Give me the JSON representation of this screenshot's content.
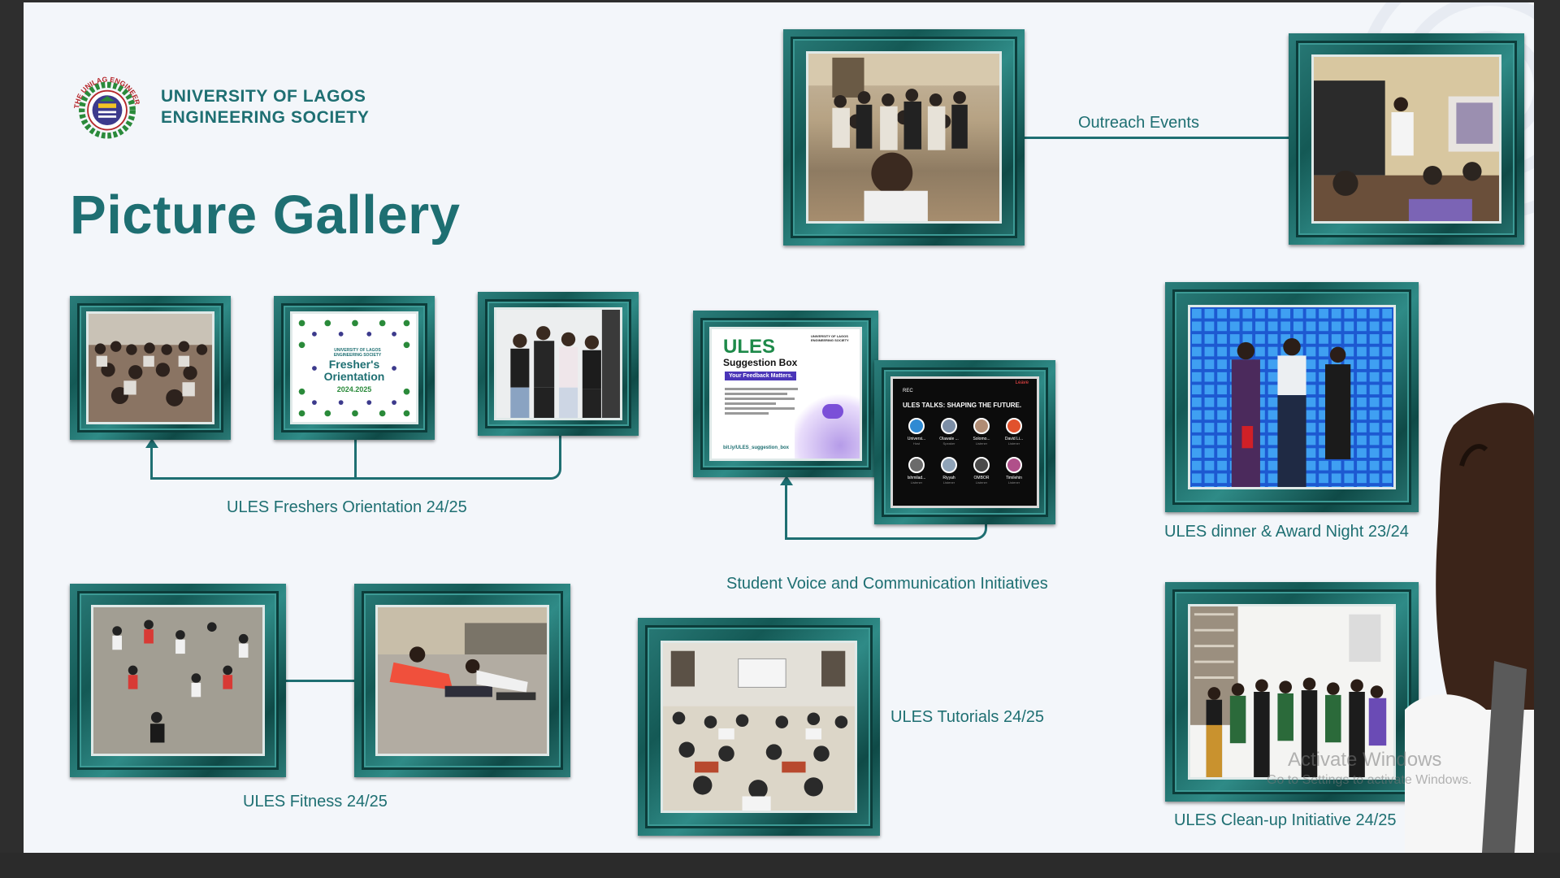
{
  "org": {
    "line1": "UNIVERSITY OF LAGOS",
    "line2": "ENGINEERING SOCIETY",
    "logo_ring_text": "THE UNILAG ENGINEER"
  },
  "title": "Picture Gallery",
  "captions": {
    "outreach": "Outreach Events",
    "freshers": "ULES Freshers Orientation 24/25",
    "student_voice": "Student Voice and Communication Initiatives",
    "dinner": "ULES dinner & Award Night 23/24",
    "fitness": "ULES Fitness 24/25",
    "tutorials": "ULES Tutorials 24/25",
    "cleanup": "ULES Clean-up Initiative 24/25"
  },
  "fresher_poster": {
    "line1": "Fresher's",
    "line2": "Orientation",
    "year": "2024.2025",
    "org_small": "UNIVERSITY OF LAGOS ENGINEERING SOCIETY"
  },
  "suggestion_poster": {
    "brand": "ULES",
    "subtitle": "Suggestion Box",
    "tag": "Your Feedback Matters.",
    "link": "bit.ly/ULES_suggestion_box",
    "org_small": "UNIVERSITY OF LAGOS ENGINEERING SOCIETY"
  },
  "space_screen": {
    "rec": "REC",
    "leave": "Leave",
    "heading": "ULES TALKS: SHAPING THE FUTURE.",
    "participants": [
      {
        "name": "Universi...",
        "role": "Host"
      },
      {
        "name": "Olawale ...",
        "role": "Speaker"
      },
      {
        "name": "Solomo...",
        "role": "Listener"
      },
      {
        "name": "David Li...",
        "role": "Listener"
      },
      {
        "name": "Ishmilad...",
        "role": "Listener"
      },
      {
        "name": "Riyyah",
        "role": "Listener"
      },
      {
        "name": "OMBOR",
        "role": "Listener"
      },
      {
        "name": "Timilehin",
        "role": "Listener"
      }
    ]
  },
  "watermark": {
    "line1": "Activate Windows",
    "line2": "Go to Settings to activate Windows."
  },
  "colors": {
    "accent": "#1e6f72",
    "background": "#f3f6fa",
    "frame": "#1e6a67"
  }
}
